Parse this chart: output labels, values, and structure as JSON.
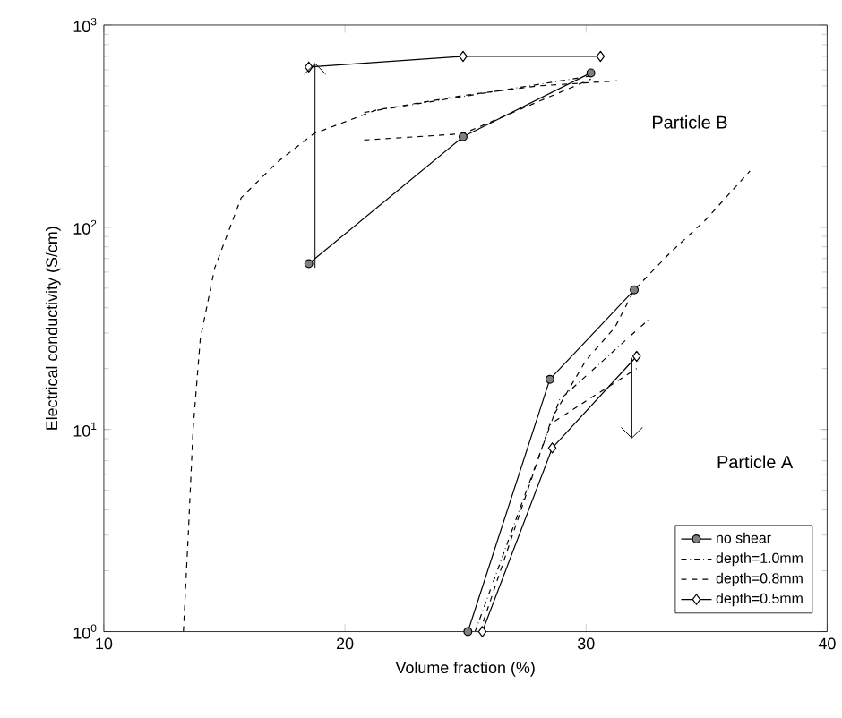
{
  "chart_data": {
    "type": "line",
    "xlabel": "Volume fraction (%)",
    "ylabel": "Electrical conductivity (S/cm)",
    "xlim": [
      10,
      40
    ],
    "xticks": [
      10,
      20,
      30,
      40
    ],
    "ylim": [
      1,
      1000
    ],
    "yticks": [
      {
        "value": 1,
        "label": "10$^{0}$"
      },
      {
        "value": 10,
        "label": "10$^{1}$"
      },
      {
        "value": 100,
        "label": "10$^{2}$"
      },
      {
        "value": 1000,
        "label": "10$^{3}$"
      }
    ],
    "log": "y",
    "grid": false,
    "legend": "bottom right",
    "series": [
      {
        "name": "no shear",
        "color": "#000000",
        "marker": "circle",
        "line_style": "solid",
        "x": [
          25.1,
          28.5,
          32.0
        ],
        "values": [
          1,
          17.7,
          49
        ]
      },
      {
        "name": "depth=1.0mm",
        "color": "#000000",
        "marker": "none",
        "line_style": "dashdot",
        "x": [
          25.4,
          28.9,
          32.6
        ],
        "values": [
          1,
          14,
          35
        ]
      },
      {
        "name": "depth=0.8mm",
        "color": "#000000",
        "marker": "none",
        "line_style": "dashed",
        "x": [
          25.6,
          28.5,
          32.1
        ],
        "values": [
          1,
          10.6,
          20
        ]
      },
      {
        "name": "depth=0.5mm",
        "color": "#000000",
        "marker": "diamond",
        "line_style": "solid",
        "x": [
          25.7,
          28.6,
          32.1
        ],
        "values": [
          1,
          8.1,
          23
        ]
      },
      {
        "color": "#000000",
        "marker": "circle",
        "line_style": "solid",
        "x": [
          18.5,
          24.9,
          30.2
        ],
        "values": [
          66,
          280,
          580
        ]
      },
      {
        "color": "#000000",
        "marker": "none",
        "line_style": "dashdot",
        "x": [
          20.8,
          30.2
        ],
        "values": [
          370,
          560
        ]
      },
      {
        "color": "#000000",
        "marker": "none",
        "line_style": "dashed",
        "x": [
          20.8,
          24.9,
          30.2
        ],
        "values": [
          270,
          290,
          540
        ]
      },
      {
        "color": "#000000",
        "marker": "diamond",
        "line_style": "solid",
        "x": [
          18.5,
          24.9,
          30.6
        ],
        "values": [
          620,
          700,
          700
        ]
      },
      {
        "color": "#000000",
        "marker": "none",
        "line_style": "dashed",
        "x": [
          13.3,
          13.5,
          13.7,
          14.0,
          14.6,
          15.7,
          17.2,
          18.7,
          21.3,
          25.0,
          28.0,
          31.3
        ],
        "values": [
          1,
          3,
          10,
          28,
          63,
          140,
          210,
          290,
          380,
          450,
          500,
          530
        ]
      },
      {
        "color": "#000000",
        "marker": "none",
        "line_style": "dashed",
        "x": [
          28.7,
          30.0,
          31.2,
          32.0,
          33.5,
          35.0,
          36.8
        ],
        "values": [
          12,
          22,
          32,
          49,
          75,
          110,
          190
        ]
      }
    ],
    "annotations": [
      "Particle B",
      "Particle A"
    ]
  }
}
